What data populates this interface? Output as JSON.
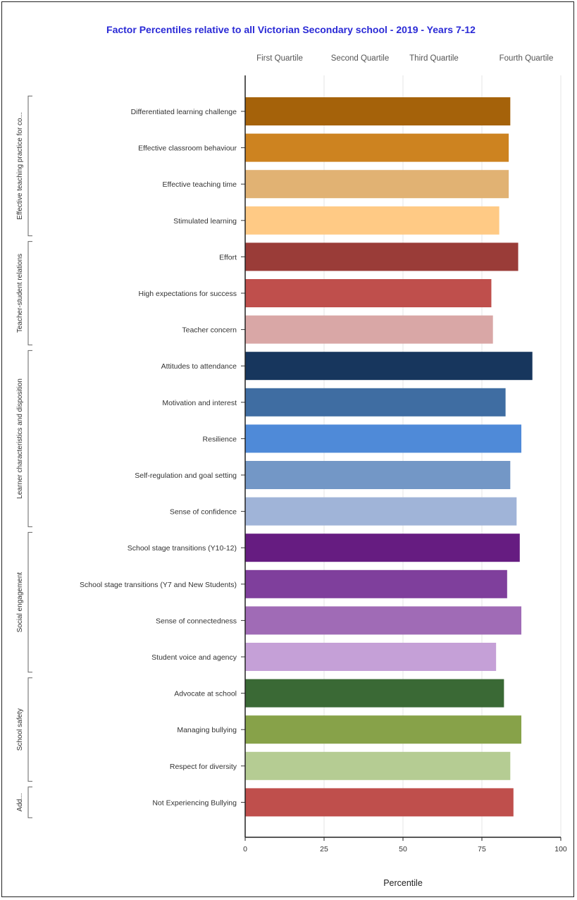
{
  "chart_data": {
    "type": "bar",
    "orientation": "horizontal",
    "title": "Factor Percentiles relative to all Victorian Secondary school - 2019 - Years 7-12",
    "xlabel": "Percentile",
    "xlim": [
      0,
      100
    ],
    "xticks": [
      "0",
      "25",
      "50",
      "75",
      "100"
    ],
    "grid": true,
    "quartile_labels": [
      "First Quartile",
      "Second Quartile",
      "Third Quartile",
      "Fourth Quartile"
    ],
    "groups": [
      {
        "name": "Effective teaching practice for co...",
        "count": 4
      },
      {
        "name": "Teacher-student relations",
        "count": 3
      },
      {
        "name": "Learner characteristics and disposition",
        "count": 5
      },
      {
        "name": "Social engagement",
        "count": 4
      },
      {
        "name": "School safety",
        "count": 3
      },
      {
        "name": "Add...",
        "count": 1
      }
    ],
    "categories": [
      "Differentiated learning challenge",
      "Effective classroom behaviour",
      "Effective teaching time",
      "Stimulated learning",
      "Effort",
      "High expectations for success",
      "Teacher concern",
      "Attitudes to attendance",
      "Motivation and interest",
      "Resilience",
      "Self-regulation and goal setting",
      "Sense of confidence",
      "School stage transitions (Y10-12)",
      "School stage transitions (Y7 and New Students)",
      "Sense of connectedness",
      "Student voice and agency",
      "Advocate at school",
      "Managing bullying",
      "Respect for diversity",
      "Not Experiencing Bullying"
    ],
    "values": [
      84,
      83.5,
      83.5,
      80.5,
      86.5,
      78,
      78.5,
      91,
      82.5,
      87.5,
      84,
      86,
      87,
      83,
      87.5,
      79.5,
      82,
      87.5,
      84,
      85
    ],
    "colors": [
      "#a5620a",
      "#cd8320",
      "#e1b273",
      "#ffca85",
      "#9a3c38",
      "#bf4f4c",
      "#d9a7a6",
      "#17365d",
      "#3f6da2",
      "#4f8ad8",
      "#7397c6",
      "#a0b4d8",
      "#661c81",
      "#7f3f9c",
      "#a06bb6",
      "#c5a0d7",
      "#3a6935",
      "#87a249",
      "#b5cc93",
      "#bf4f4c"
    ]
  }
}
